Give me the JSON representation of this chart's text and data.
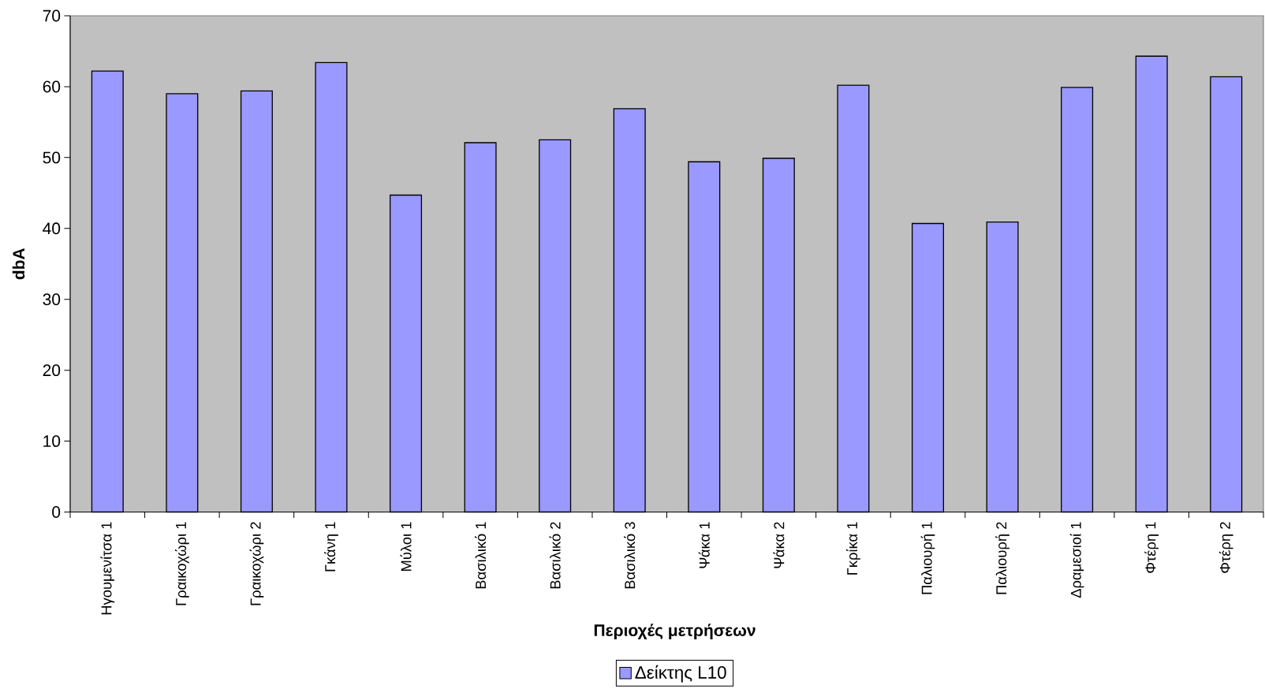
{
  "chart_data": {
    "type": "bar",
    "xlabel": "Περιοχές μετρήσεων",
    "ylabel": "dbA",
    "categories": [
      "Ηγουμενίτσα 1",
      "Γραικοχώρι 1",
      "Γραικοχώρι 2",
      "Γκάνη 1",
      "Μύλοι 1",
      "Βασιλικό 1",
      "Βασιλικό 2",
      "Βασιλικό 3",
      "Ψάκα 1",
      "Ψάκα 2",
      "Γκρίκα 1",
      "Παλιουρή 1",
      "Παλιουρή 2",
      "Δραμεσιοί 1",
      "Φτέρη 1",
      "Φτέρη 2"
    ],
    "series": [
      {
        "name": "Δείκτης L10",
        "color": "#9999ff",
        "values": [
          62.2,
          59.0,
          59.4,
          63.4,
          44.7,
          52.1,
          52.5,
          56.9,
          49.4,
          49.9,
          60.2,
          40.7,
          40.9,
          59.9,
          64.3,
          61.4
        ]
      }
    ],
    "ylim": [
      0,
      70
    ],
    "yticks": [
      0,
      10,
      20,
      30,
      40,
      50,
      60,
      70
    ],
    "legend": "bottom"
  }
}
